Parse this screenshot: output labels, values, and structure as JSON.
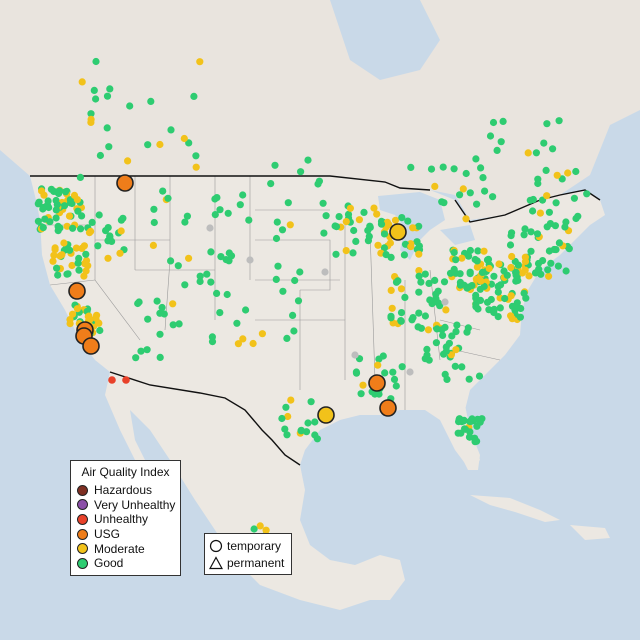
{
  "legend": {
    "title": "Air Quality Index",
    "items": [
      {
        "label": "Hazardous",
        "color": "#7e2f22"
      },
      {
        "label": "Very Unhealthy",
        "color": "#8c4fa8"
      },
      {
        "label": "Unhealthy",
        "color": "#e8412a"
      },
      {
        "label": "USG",
        "color": "#ef7d1a"
      },
      {
        "label": "Moderate",
        "color": "#f2c21a"
      },
      {
        "label": "Good",
        "color": "#2ecc71"
      }
    ]
  },
  "shape_legend": {
    "temporary": "temporary",
    "permanent": "permanent"
  },
  "colors": {
    "ocean": "#c9d9e8",
    "land": "#ece8e2",
    "state_border": "#9a9a9a",
    "country_border": "#111111",
    "no_data": "#bdbdbd"
  }
}
